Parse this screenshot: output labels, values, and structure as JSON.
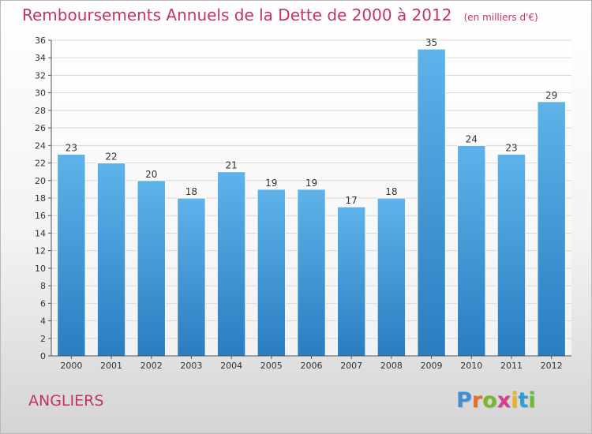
{
  "chart_data": {
    "type": "bar",
    "title": "Remboursements Annuels de la Dette de 2000 à 2012",
    "unit": "(en milliers d'€)",
    "xlabel": "",
    "ylabel": "",
    "categories": [
      "2000",
      "2001",
      "2002",
      "2003",
      "2004",
      "2005",
      "2006",
      "2007",
      "2008",
      "2009",
      "2010",
      "2011",
      "2012"
    ],
    "values": [
      23,
      22,
      20,
      18,
      21,
      19,
      19,
      17,
      18,
      35,
      24,
      23,
      29
    ],
    "ylim": [
      0,
      36
    ],
    "yticks": [
      "0",
      "2",
      "4",
      "6",
      "8",
      "10",
      "12",
      "14",
      "16",
      "18",
      "20",
      "22",
      "24",
      "26",
      "28",
      "30",
      "32",
      "34",
      "36"
    ],
    "grid": true,
    "bar_color_top": "#5eb3ea",
    "bar_color_bottom": "#2a7dc0"
  },
  "commune": "ANGLIERS",
  "brand": {
    "letters": [
      "P",
      "r",
      "o",
      "x",
      "i",
      "t",
      "i"
    ],
    "colors": [
      "#3e8fd6",
      "#e2712a",
      "#7ab62e",
      "#d63c8e",
      "#e8b41b",
      "#2f9cd6",
      "#6dbb2f"
    ]
  },
  "colors": {
    "title": "#c3336a",
    "axis_text": "#333333",
    "grid": "#d8d8d8"
  }
}
